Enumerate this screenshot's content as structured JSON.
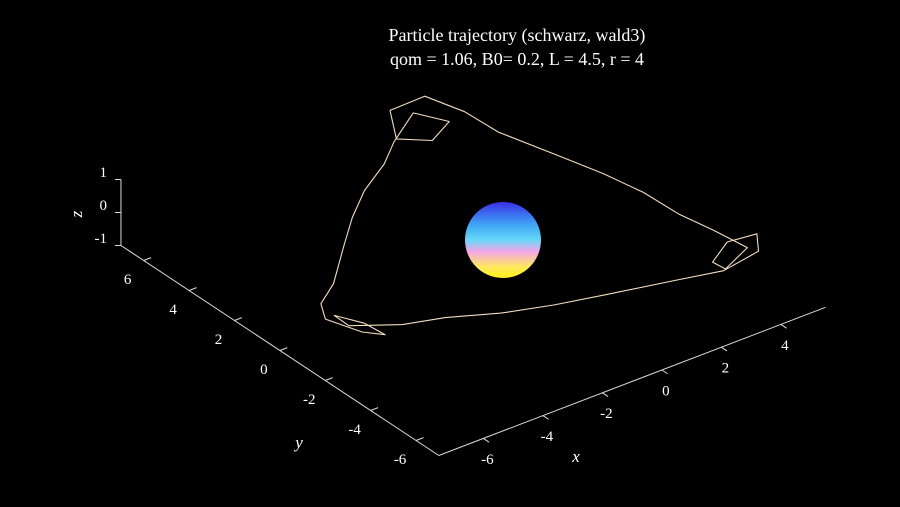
{
  "chart_data": {
    "type": "line3d",
    "title": "Particle trajectory (schwarz, wald3)",
    "subtitle": "qom = 1.06, B0= 0.2, L = 4.5, r = 4",
    "xlabel": "x",
    "ylabel": "y",
    "zlabel": "z",
    "xlim": [
      -7.5,
      5.5
    ],
    "ylim": [
      -7,
      7
    ],
    "zlim": [
      -1,
      1
    ],
    "xticks": [
      -6,
      -4,
      -2,
      0,
      2,
      4
    ],
    "yticks": [
      -6,
      -4,
      -2,
      0,
      2,
      4,
      6
    ],
    "zticks": [
      -1,
      0,
      1
    ],
    "series": [
      {
        "color": "#f2dcc0",
        "x": [
          3.12,
          2.95,
          2.39,
          1.3,
          0.94,
          1.76,
          2.52,
          1.82,
          0.59,
          -0.34,
          -1.61,
          -2.74,
          -3.8,
          -5.27,
          -6.29,
          -6.9,
          -6.43,
          -5.6,
          -5.57,
          -6.17,
          -6.4,
          -5.12,
          -3.98,
          -2.65,
          -1.27,
          0.15,
          2.16,
          3.34,
          4.5,
          5.13,
          4.66,
          3.81,
          3.65,
          4.59,
          4.53,
          4.32,
          4.26,
          4.01,
          3.65,
          3.12
        ],
        "y": [
          4.29,
          5.56,
          6.58,
          6.68,
          5.93,
          5.42,
          5.67,
          6.34,
          5.57,
          4.79,
          3.99,
          3.05,
          2.02,
          0.56,
          -0.22,
          -1.22,
          -2.22,
          -2.15,
          -1.19,
          -0.65,
          -1.6,
          -2.28,
          -2.68,
          -3.39,
          -3.9,
          -4.3,
          -4.84,
          -5.34,
          -5.36,
          -4.46,
          -3.77,
          -4.24,
          -5.02,
          -4.75,
          -3.29,
          -2.1,
          -0.6,
          0.85,
          2.28,
          4.29
        ],
        "z": [
          0,
          0.1,
          0.3,
          0.2,
          -0.2,
          -0.3,
          -0.1,
          0.1,
          0,
          0,
          0,
          0,
          0,
          0,
          0.1,
          0.3,
          0.2,
          -0.2,
          -0.3,
          -0.1,
          0.1,
          0,
          0,
          0,
          0,
          0,
          0,
          0.1,
          0.3,
          0.2,
          -0.2,
          -0.3,
          -0.1,
          0.1,
          0,
          0,
          0,
          0,
          0,
          0
        ]
      }
    ]
  }
}
